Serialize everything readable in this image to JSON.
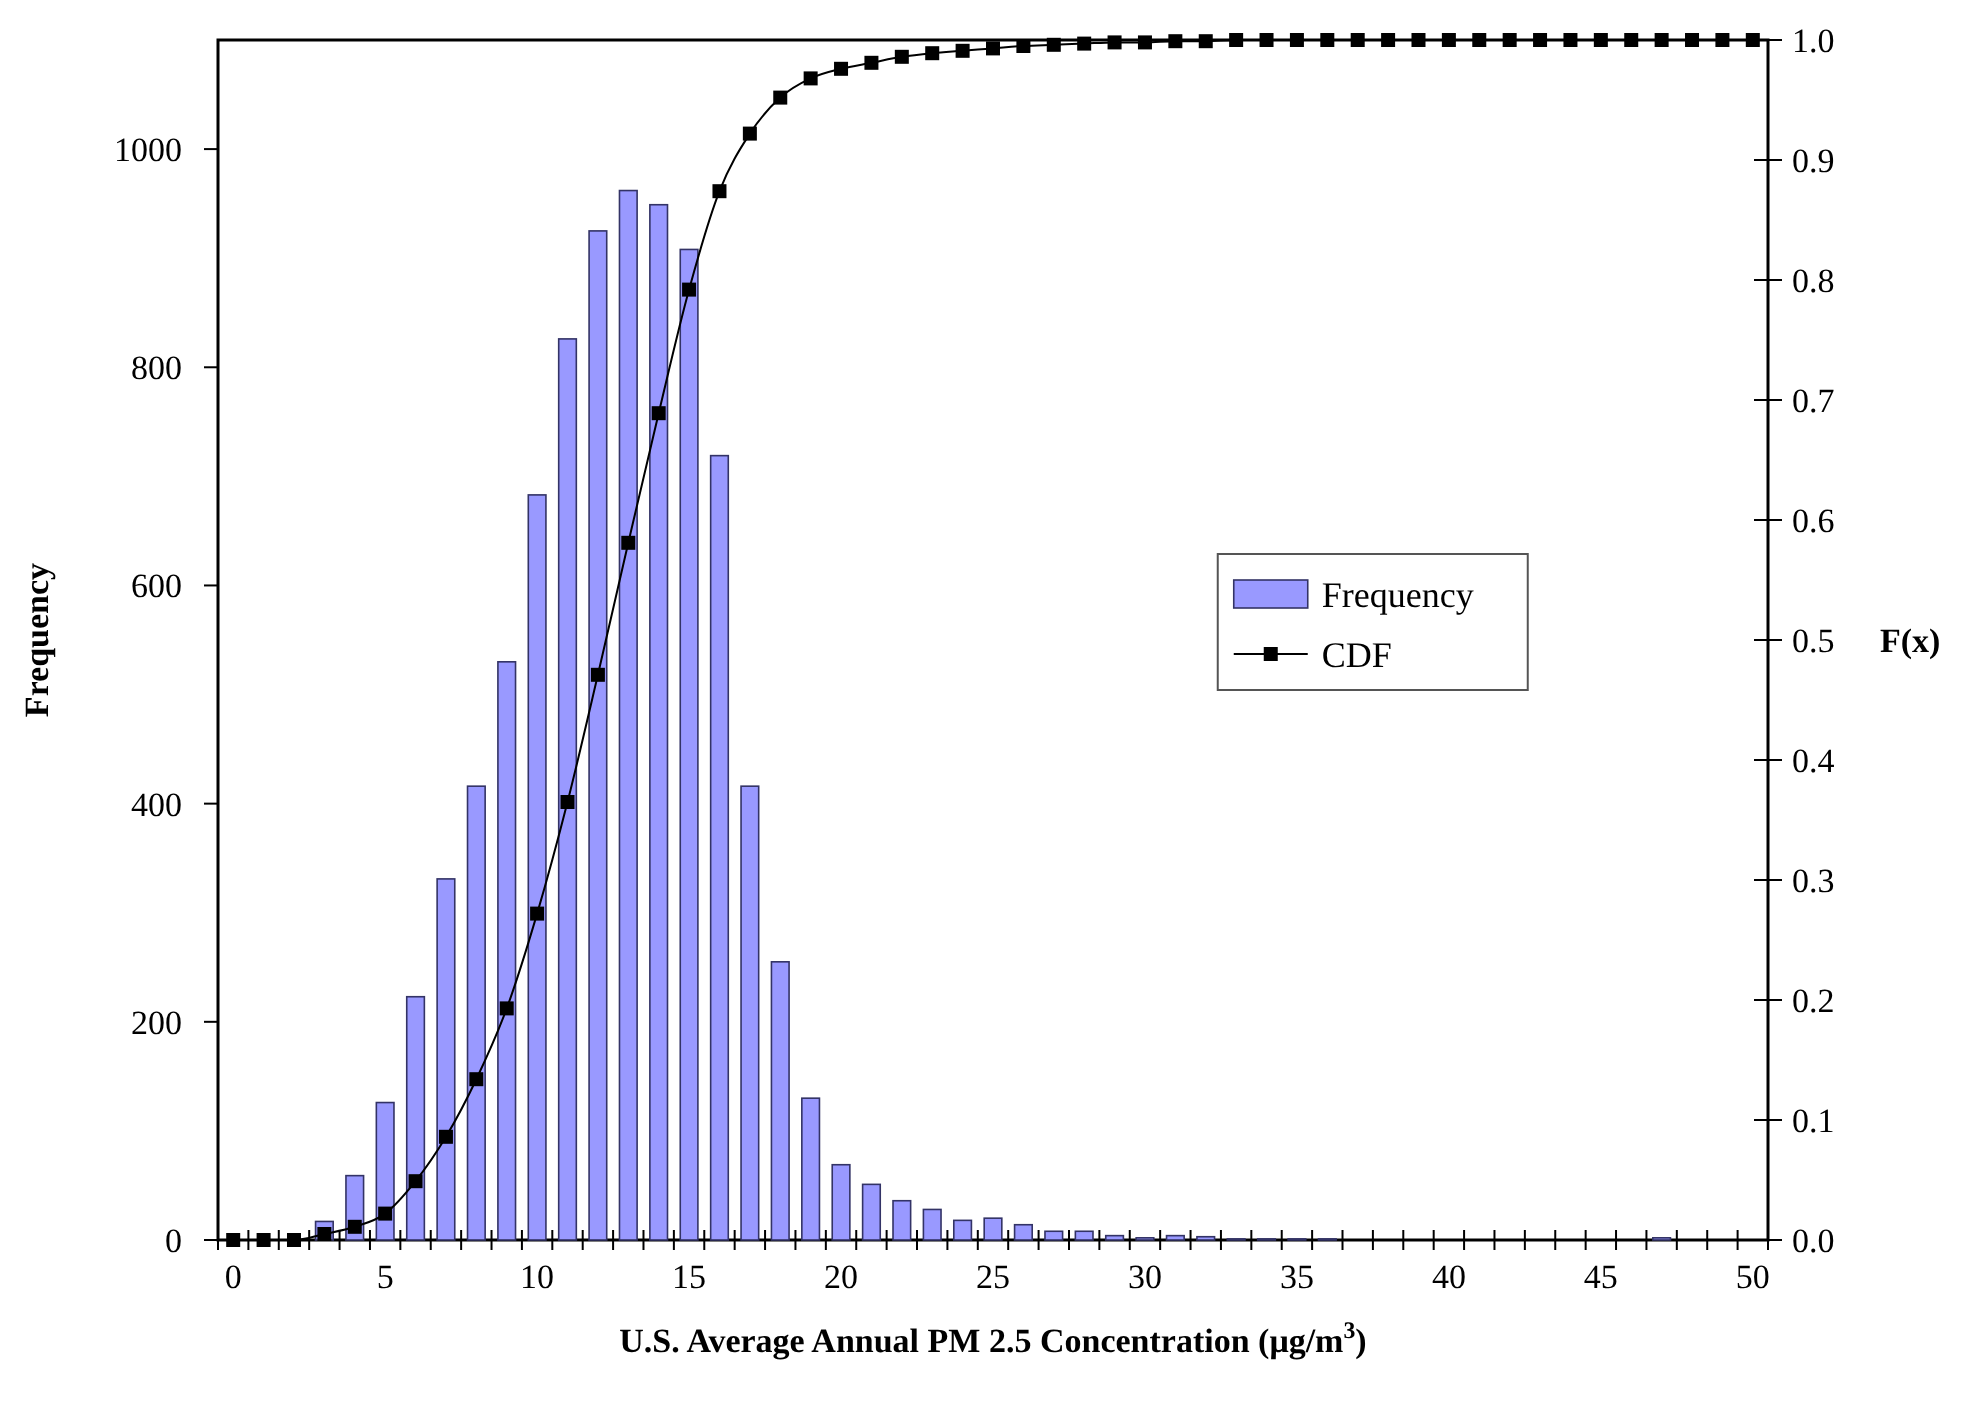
{
  "chart_data": {
    "type": "bar",
    "xlabel": "U.S. Average Annual PM 2.5 Concentration (μg/m$^{3}$)",
    "ylabel": "Frequency",
    "y2label": "F(x)",
    "categories": [
      "0",
      null,
      null,
      null,
      null,
      "5",
      null,
      null,
      null,
      null,
      "10",
      null,
      null,
      null,
      null,
      "15",
      null,
      null,
      null,
      null,
      "20",
      null,
      null,
      null,
      null,
      "25",
      null,
      null,
      null,
      null,
      "30",
      null,
      null,
      null,
      null,
      "35",
      null,
      null,
      null,
      null,
      "40",
      null,
      null,
      null,
      null,
      "45",
      null,
      null,
      null,
      null,
      "50"
    ],
    "series": [
      {
        "name": "Frequency",
        "color": "#9999ff",
        "values": [
          null,
          null,
          null,
          17,
          59,
          126,
          223,
          331,
          416,
          530,
          683,
          826,
          925,
          962,
          949,
          908,
          719,
          416,
          255,
          130,
          69,
          51,
          36,
          28,
          18,
          20,
          14,
          8,
          8,
          4,
          2,
          4,
          3,
          1,
          1,
          1,
          1,
          0,
          0,
          0,
          0,
          0,
          0,
          0,
          0,
          0,
          0,
          2,
          0,
          0,
          0
        ]
      },
      {
        "name": "CDF",
        "type": "line",
        "axis": "y2",
        "color": "#000000",
        "marker": "square",
        "line_style": "solid",
        "values": [
          0,
          0,
          0,
          0.005,
          0.011,
          0.022,
          0.049,
          0.086,
          0.134,
          0.193,
          0.272,
          0.365,
          0.471,
          0.581,
          0.689,
          0.792,
          0.874,
          0.922,
          0.952,
          0.968,
          0.976,
          0.981,
          0.986,
          0.989,
          0.991,
          0.993,
          0.995,
          0.996,
          0.997,
          0.998,
          0.998,
          0.999,
          0.999,
          1,
          1,
          1,
          1,
          1,
          1,
          1,
          1,
          1,
          1,
          1,
          1,
          1,
          1,
          1,
          1,
          1,
          1
        ]
      }
    ],
    "ylim": [
      0,
      1100
    ],
    "yticks": [
      0,
      200,
      400,
      600,
      800,
      1000
    ],
    "y2lim": [
      0,
      1
    ],
    "y2ticks": [
      {
        "value": 0,
        "label": "0.0"
      },
      {
        "value": 0.1,
        "label": "0.1"
      },
      {
        "value": 0.2,
        "label": "0.2"
      },
      {
        "value": 0.3,
        "label": "0.3"
      },
      {
        "value": 0.4,
        "label": "0.4"
      },
      {
        "value": 0.5,
        "label": "0.5"
      },
      {
        "value": 0.6,
        "label": "0.6"
      },
      {
        "value": 0.7,
        "label": "0.7"
      },
      {
        "value": 0.8,
        "label": "0.8"
      },
      {
        "value": 0.9,
        "label": "0.9"
      },
      {
        "value": 1,
        "label": "1.0"
      }
    ],
    "grid": false,
    "legend": "right"
  }
}
